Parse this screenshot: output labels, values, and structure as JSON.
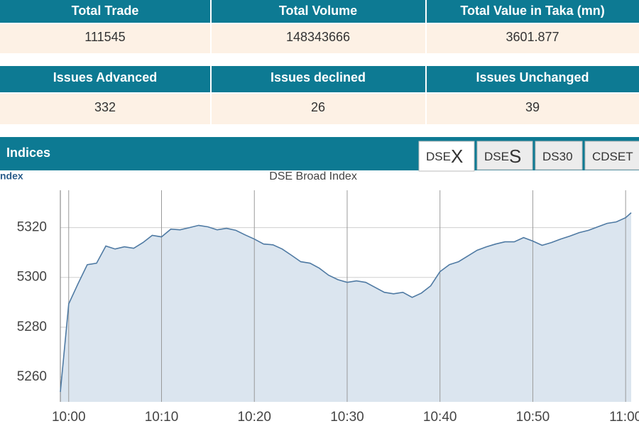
{
  "summary_table": {
    "headers": [
      "Total Trade",
      "Total Volume",
      "Total Value in Taka (mn)"
    ],
    "values": [
      111545,
      148343666,
      3601.877
    ]
  },
  "issues_table": {
    "headers": [
      "Issues Advanced",
      "Issues declined",
      "Issues Unchanged"
    ],
    "values": [
      332,
      26,
      39
    ]
  },
  "panel": {
    "title": "Indices",
    "axis_caption": "ndex",
    "tabs": [
      [
        "DSE",
        "X"
      ],
      [
        "DSE",
        "S"
      ],
      [
        "DS30"
      ],
      [
        "CDSET"
      ]
    ]
  },
  "chart_data": {
    "type": "area",
    "title": "DSE Broad Index",
    "color": "#4f7aa3",
    "fill": "#dbe5ef",
    "x": [
      -0.9,
      0,
      1,
      2,
      3,
      4,
      5,
      6,
      7,
      8,
      9,
      10,
      11,
      12,
      13,
      14,
      15,
      16,
      17,
      18,
      19,
      20,
      21,
      22,
      23,
      24,
      25,
      26,
      27,
      28,
      29,
      30,
      31,
      32,
      33,
      34,
      35,
      36,
      37,
      38,
      39,
      40,
      41,
      42,
      43,
      44,
      45,
      46,
      47,
      48,
      49,
      50,
      51,
      52,
      53,
      54,
      55,
      56,
      57,
      58,
      59,
      60,
      60.6
    ],
    "values": [
      5254.0,
      5289.4,
      5297.4,
      5305.1,
      5305.7,
      5312.6,
      5311.4,
      5312.3,
      5311.7,
      5314.0,
      5316.9,
      5316.3,
      5319.4,
      5319.1,
      5320.0,
      5320.9,
      5320.3,
      5319.1,
      5319.7,
      5318.9,
      5317.1,
      5315.4,
      5313.4,
      5313.1,
      5311.4,
      5308.9,
      5306.3,
      5305.7,
      5303.7,
      5300.9,
      5299.1,
      5298.0,
      5298.6,
      5298.0,
      5296.0,
      5294.0,
      5293.4,
      5294.0,
      5292.0,
      5293.7,
      5296.6,
      5302.3,
      5305.1,
      5306.3,
      5308.6,
      5310.9,
      5312.3,
      5313.4,
      5314.3,
      5314.3,
      5316.0,
      5314.6,
      5312.9,
      5314.0,
      5315.4,
      5316.6,
      5318.0,
      5318.9,
      5320.3,
      5321.7,
      5322.3,
      5324.0,
      5326.0
    ],
    "xlim": [
      -0.9,
      60.6
    ],
    "xticks": [
      {
        "value": 0,
        "label": "10:00"
      },
      {
        "value": 10,
        "label": "10:10"
      },
      {
        "value": 20,
        "label": "10:20"
      },
      {
        "value": 30,
        "label": "10:30"
      },
      {
        "value": 40,
        "label": "10:40"
      },
      {
        "value": 50,
        "label": "10:50"
      },
      {
        "value": 60,
        "label": "11:00"
      }
    ],
    "ylim": [
      5250,
      5335
    ],
    "yticks": [
      5260,
      5280,
      5300,
      5320
    ],
    "grid": true
  }
}
